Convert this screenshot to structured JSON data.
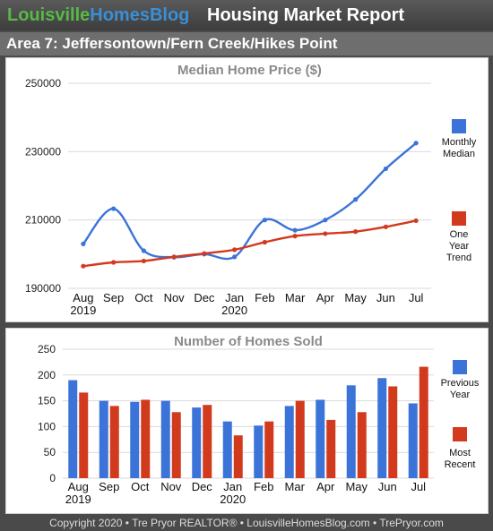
{
  "header": {
    "brand_part1": "Louisville",
    "brand_part2": "HomesBlog",
    "title": "Housing Market Report"
  },
  "area_label": "Area 7: Jeffersontown/Fern Creek/Hikes Point",
  "footer": "Copyright 2020 • Tre Pryor REALTOR® • LouisvilleHomesBlog.com • TrePryor.com",
  "colors": {
    "blue": "#3b73d9",
    "red": "#d23a1e",
    "grid": "#d9d9d9",
    "title_gray": "#8a8a8a"
  },
  "chart_data": [
    {
      "type": "line",
      "title": "Median Home Price ($)",
      "categories": [
        "Aug",
        "Sep",
        "Oct",
        "Nov",
        "Dec",
        "Jan",
        "Feb",
        "Mar",
        "Apr",
        "May",
        "Jun",
        "Jul"
      ],
      "year_labels": [
        "2019",
        "",
        "",
        "",
        "",
        "2020",
        "",
        "",
        "",
        "",
        "",
        ""
      ],
      "ylim": [
        190000,
        250000
      ],
      "yticks": [
        "190000",
        "210000",
        "230000",
        "250000"
      ],
      "ytick_values": [
        190000,
        210000,
        230000,
        250000
      ],
      "grid": true,
      "legend_position": "right",
      "series": [
        {
          "name": "Monthly Median",
          "legend_lines": [
            "Monthly",
            "Median"
          ],
          "color": "#3b73d9",
          "values": [
            203000,
            213300,
            201000,
            199100,
            200000,
            199200,
            210000,
            207000,
            210000,
            216000,
            225000,
            232500
          ]
        },
        {
          "name": "One Year Trend",
          "legend_lines": [
            "One",
            "Year",
            "Trend"
          ],
          "color": "#d23a1e",
          "values": [
            196500,
            197600,
            198000,
            199200,
            200200,
            201300,
            203500,
            205300,
            206000,
            206600,
            208000,
            209800
          ]
        }
      ]
    },
    {
      "type": "bar",
      "title": "Number of Homes Sold",
      "categories": [
        "Aug",
        "Sep",
        "Oct",
        "Nov",
        "Dec",
        "Jan",
        "Feb",
        "Mar",
        "Apr",
        "May",
        "Jun",
        "Jul"
      ],
      "year_labels": [
        "2019",
        "",
        "",
        "",
        "",
        "2020",
        "",
        "",
        "",
        "",
        "",
        ""
      ],
      "ylim": [
        0,
        250
      ],
      "yticks": [
        "0",
        "50",
        "100",
        "150",
        "200",
        "250"
      ],
      "ytick_values": [
        0,
        50,
        100,
        150,
        200,
        250
      ],
      "grid": true,
      "legend_position": "right",
      "series": [
        {
          "name": "Previous Year",
          "legend_lines": [
            "Previous",
            "Year"
          ],
          "color": "#3b73d9",
          "values": [
            190,
            150,
            148,
            150,
            137,
            110,
            102,
            140,
            152,
            180,
            194,
            145
          ]
        },
        {
          "name": "Most Recent",
          "legend_lines": [
            "Most",
            "Recent"
          ],
          "color": "#d23a1e",
          "values": [
            166,
            140,
            152,
            128,
            142,
            83,
            110,
            150,
            113,
            128,
            178,
            216
          ]
        }
      ]
    }
  ]
}
